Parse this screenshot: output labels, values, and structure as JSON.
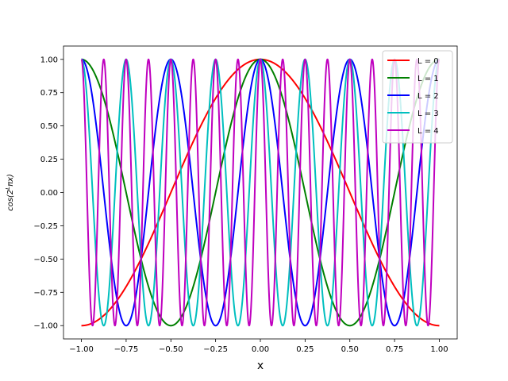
{
  "chart_data": {
    "type": "line",
    "title": "",
    "xlabel": "x",
    "ylabel_parts": {
      "before": "cos(2",
      "superscript": "L",
      "after": "πx)"
    },
    "xlim": [
      -1.1,
      1.1
    ],
    "ylim": [
      -1.1,
      1.1
    ],
    "x_range": [
      -1.0,
      1.0
    ],
    "x_ticks": [
      -1.0,
      -0.75,
      -0.5,
      -0.25,
      0.0,
      0.25,
      0.5,
      0.75,
      1.0
    ],
    "x_tick_labels": [
      "−1.00",
      "−0.75",
      "−0.50",
      "−0.25",
      "0.00",
      "0.25",
      "0.50",
      "0.75",
      "1.00"
    ],
    "y_ticks": [
      -1.0,
      -0.75,
      -0.5,
      -0.25,
      0.0,
      0.25,
      0.5,
      0.75,
      1.0
    ],
    "y_tick_labels": [
      "−1.00",
      "−0.75",
      "−0.50",
      "−0.25",
      "0.00",
      "0.25",
      "0.50",
      "0.75",
      "1.00"
    ],
    "grid": false,
    "legend_position": "top-right",
    "formula": "y = cos(2^L · π · x)",
    "series": [
      {
        "name": "L = 0",
        "L": 0,
        "color": "#ff0000"
      },
      {
        "name": "L = 1",
        "L": 1,
        "color": "#008000"
      },
      {
        "name": "L = 2",
        "L": 2,
        "color": "#0000ff"
      },
      {
        "name": "L = 3",
        "L": 3,
        "color": "#00bfbf"
      },
      {
        "name": "L = 4",
        "L": 4,
        "color": "#bf00bf"
      }
    ]
  }
}
